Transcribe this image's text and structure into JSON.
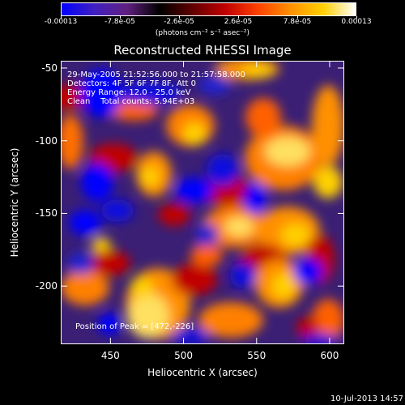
{
  "colorbar": {
    "ticks": [
      "-0.00013",
      "-7.8e-05",
      "-2.6e-05",
      "2.6e-05",
      "7.8e-05",
      "0.00013"
    ],
    "unit_label": "(photons cm⁻² s⁻¹ asec⁻²)",
    "colors": [
      "#0000ff",
      "#4020c0",
      "#602080",
      "#000000",
      "#600000",
      "#c00000",
      "#ff4000",
      "#ff9000",
      "#ffd000",
      "#ffffff"
    ]
  },
  "title": "Reconstructed RHESSI Image",
  "annotations": {
    "line1": "29-May-2005 21:52:56.000 to 21:57:58.000",
    "line2": "Detectors: 4F 5F 6F 7F 8F, Att 0",
    "line3": "Energy Range: 12.0 - 25.0 keV",
    "line4": "Clean    Total counts: 5.94E+03",
    "position": "Position of Peak = [472,-226]"
  },
  "axes": {
    "xlabel": "Heliocentric X (arcsec)",
    "ylabel": "Heliocentric Y (arcsec)",
    "xticks": [
      "450",
      "500",
      "550",
      "600"
    ],
    "yticks": [
      "-50",
      "-100",
      "-150",
      "-200"
    ],
    "xlim": [
      416,
      610
    ],
    "ylim": [
      -240,
      -45
    ]
  },
  "footer": "10-Jul-2013 14:57"
}
